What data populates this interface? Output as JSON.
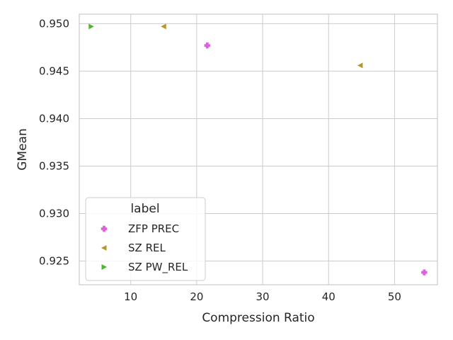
{
  "chart_data": {
    "type": "scatter",
    "title": "",
    "xlabel": "Compression Ratio",
    "ylabel": "GMean",
    "xlim": [
      2.2,
      56.5
    ],
    "ylim": [
      0.9225,
      0.951
    ],
    "xticks": [
      10,
      20,
      30,
      40,
      50
    ],
    "yticks": [
      0.925,
      0.93,
      0.935,
      0.94,
      0.945,
      0.95
    ],
    "ytick_labels": [
      "0.925",
      "0.930",
      "0.935",
      "0.940",
      "0.945",
      "0.950"
    ],
    "xtick_labels": [
      "10",
      "20",
      "30",
      "40",
      "50"
    ],
    "grid": true,
    "legend": {
      "title": "label",
      "placement": "lower-left",
      "entries": [
        "ZFP PREC",
        "SZ REL",
        "SZ PW_REL"
      ]
    },
    "series": [
      {
        "name": "ZFP PREC",
        "color": "#e05ee0",
        "marker": "plus",
        "points": [
          {
            "x": 21.6,
            "y": 0.9477
          },
          {
            "x": 54.5,
            "y": 0.9238
          }
        ]
      },
      {
        "name": "SZ REL",
        "color": "#b8962e",
        "marker": "triangle-left",
        "points": [
          {
            "x": 15.0,
            "y": 0.9497
          },
          {
            "x": 44.8,
            "y": 0.9456
          }
        ]
      },
      {
        "name": "SZ PW_REL",
        "color": "#4cb82e",
        "marker": "triangle-right",
        "points": [
          {
            "x": 4.0,
            "y": 0.9497
          }
        ]
      }
    ]
  }
}
